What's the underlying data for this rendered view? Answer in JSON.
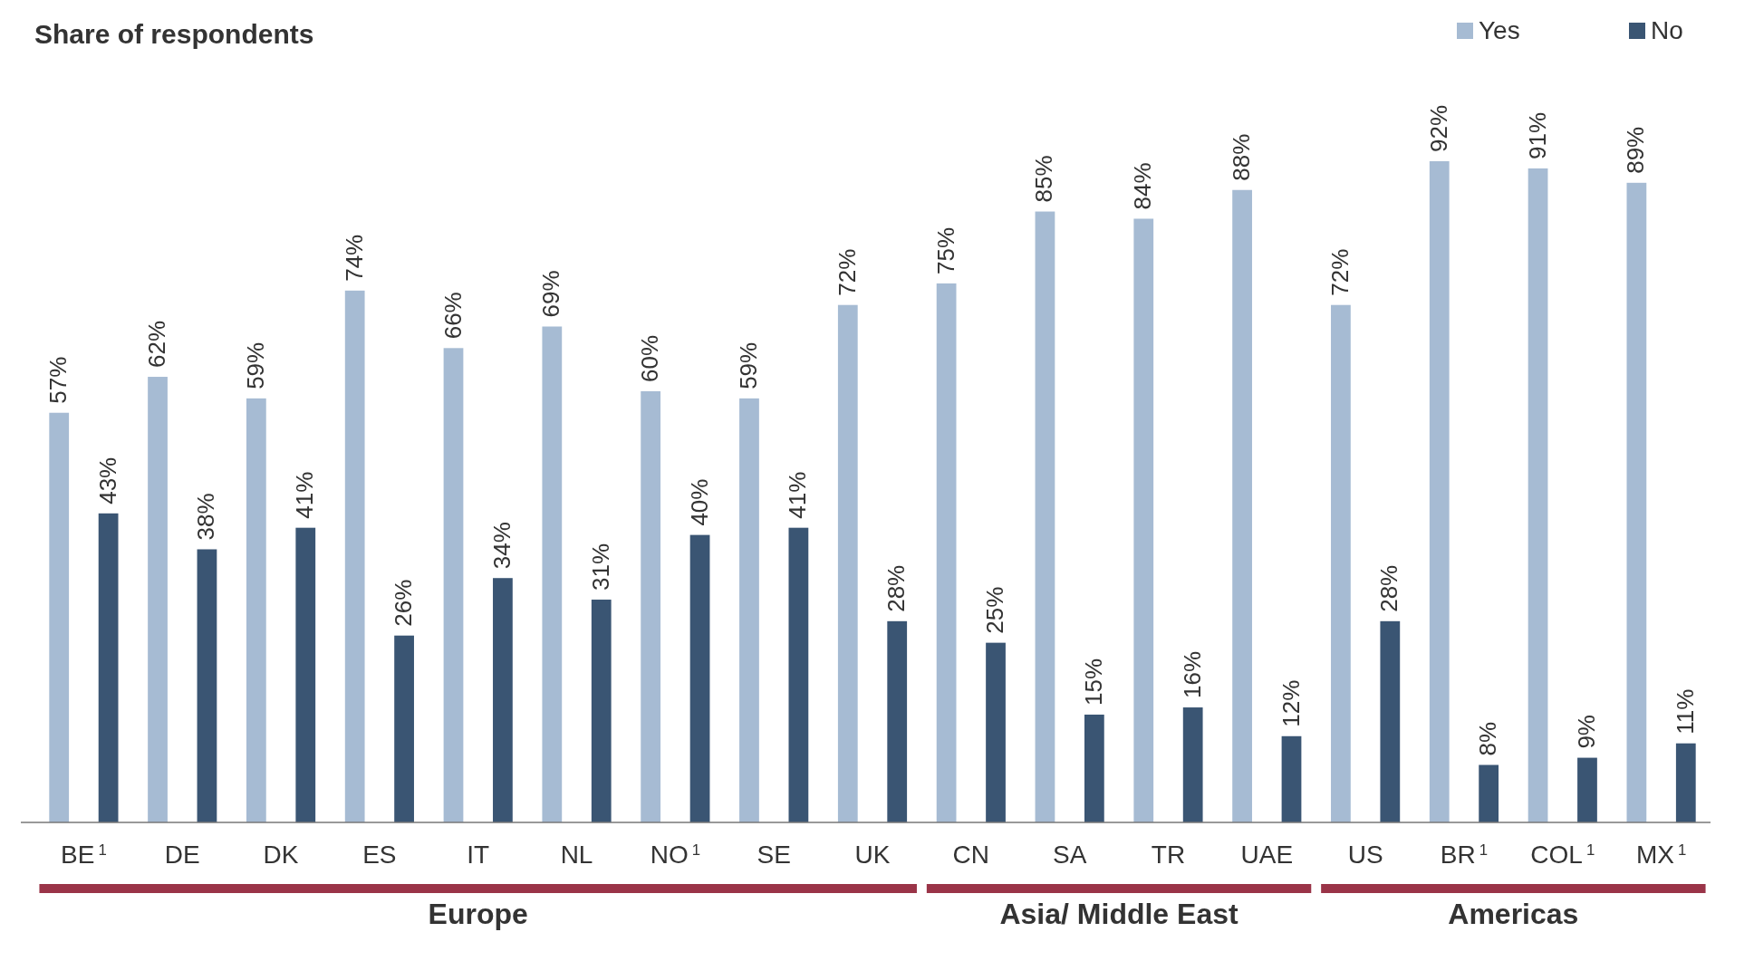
{
  "chart_data": {
    "type": "bar",
    "title": "Share of respondents",
    "categories": [
      "BE$^{1}$",
      "DE",
      "DK",
      "ES",
      "IT",
      "NL",
      "NO$^{1}$",
      "SE",
      "UK",
      "CN",
      "SA",
      "TR",
      "UAE",
      "US",
      "BR$^{1}$",
      "COL$^{1}$",
      "MX$^{1}$"
    ],
    "series": [
      {
        "name": "Yes",
        "color": "#a6bbd3",
        "values": [
          57,
          62,
          59,
          74,
          66,
          69,
          60,
          59,
          72,
          75,
          85,
          84,
          88,
          72,
          92,
          91,
          89
        ],
        "value_labels": [
          "57%",
          "62%",
          "59%",
          "74%",
          "66%",
          "69%",
          "60%",
          "59%",
          "72%",
          "75%",
          "85%",
          "84%",
          "88%",
          "72%",
          "92%",
          "91%",
          "89%"
        ]
      },
      {
        "name": "No",
        "color": "#3a5573",
        "values": [
          43,
          38,
          41,
          26,
          34,
          31,
          40,
          41,
          28,
          25,
          15,
          16,
          12,
          28,
          8,
          9,
          11
        ],
        "value_labels": [
          "43%",
          "38%",
          "41%",
          "26%",
          "34%",
          "31%",
          "40%",
          "41%",
          "28%",
          "25%",
          "15%",
          "16%",
          "12%",
          "28%",
          "8%",
          "9%",
          "11%"
        ]
      }
    ],
    "legend": "top right",
    "annotations": [
      "Europe",
      "Asia/ Middle East",
      "Americas"
    ]
  }
}
